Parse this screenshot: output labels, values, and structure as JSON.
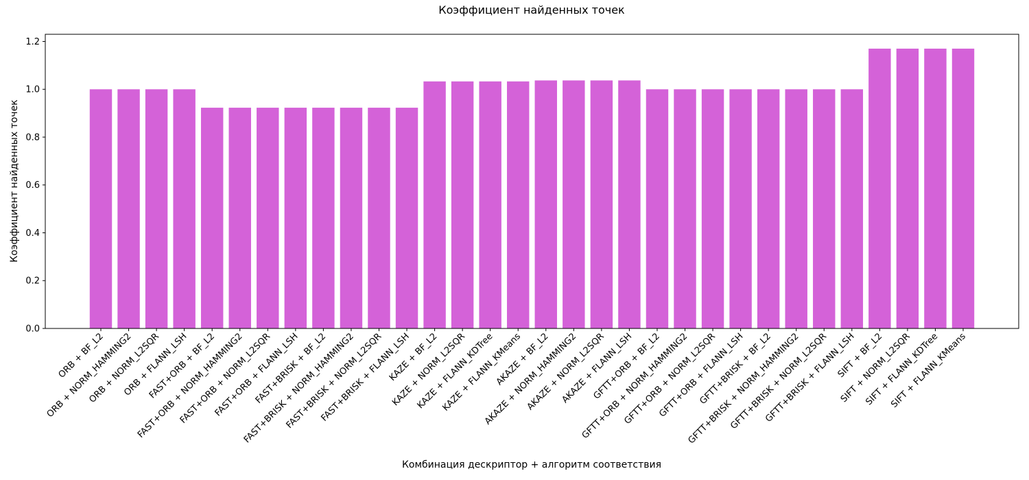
{
  "chart_data": {
    "type": "bar",
    "title": "Коэффициент найденных точек",
    "xlabel": "Комбинация дескриптор + алгоритм соответствия",
    "ylabel": "Коэффициент найденных точек",
    "ylim": [
      0,
      1.23
    ],
    "yticks": [
      "0.0",
      "0.2",
      "0.4",
      "0.6",
      "0.8",
      "1.0",
      "1.2"
    ],
    "grid": false,
    "bar_color": "#d462d8",
    "categories": [
      "ORB + BF_L2",
      "ORB + NORM_HAMMING2",
      "ORB + NORM_L2SQR",
      "ORB + FLANN_LSH",
      "FAST+ORB + BF_L2",
      "FAST+ORB + NORM_HAMMING2",
      "FAST+ORB + NORM_L2SQR",
      "FAST+ORB + FLANN_LSH",
      "FAST+BRISK + BF_L2",
      "FAST+BRISK + NORM_HAMMING2",
      "FAST+BRISK + NORM_L2SQR",
      "FAST+BRISK + FLANN_LSH",
      "KAZE + BF_L2",
      "KAZE + NORM_L2SQR",
      "KAZE + FLANN_KDTree",
      "KAZE + FLANN_KMeans",
      "AKAZE + BF_L2",
      "AKAZE + NORM_HAMMING2",
      "AKAZE + NORM_L2SQR",
      "AKAZE + FLANN_LSH",
      "GFTT+ORB + BF_L2",
      "GFTT+ORB + NORM_HAMMING2",
      "GFTT+ORB + NORM_L2SQR",
      "GFTT+ORB + FLANN_LSH",
      "GFTT+BRISK + BF_L2",
      "GFTT+BRISK + NORM_HAMMING2",
      "GFTT+BRISK + NORM_L2SQR",
      "GFTT+BRISK + FLANN_LSH",
      "SIFT + BF_L2",
      "SIFT + NORM_L2SQR",
      "SIFT + FLANN_KDTree",
      "SIFT + FLANN_KMeans"
    ],
    "values": [
      1.0,
      1.0,
      1.0,
      1.0,
      0.923,
      0.923,
      0.923,
      0.923,
      0.923,
      0.923,
      0.923,
      0.923,
      1.033,
      1.033,
      1.033,
      1.033,
      1.037,
      1.037,
      1.037,
      1.037,
      1.0,
      1.0,
      1.0,
      1.0,
      1.0,
      1.0,
      1.0,
      1.0,
      1.17,
      1.17,
      1.17,
      1.17
    ]
  }
}
